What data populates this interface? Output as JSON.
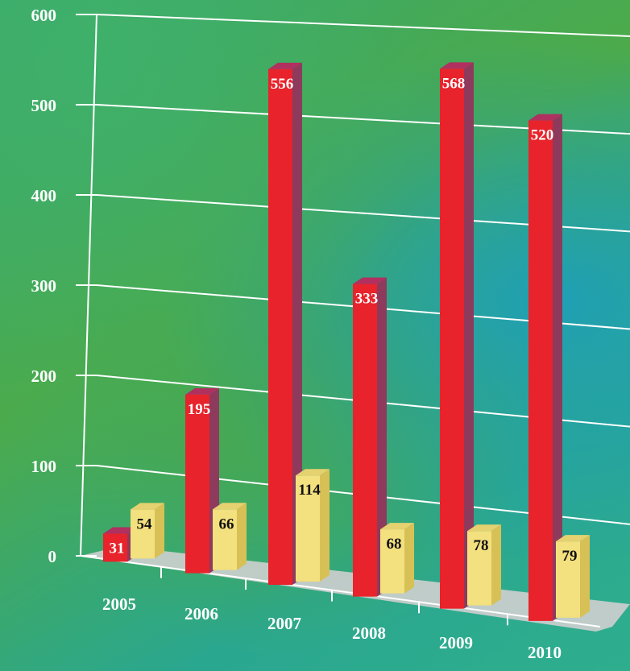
{
  "chart_data": {
    "type": "bar",
    "categories": [
      "2005",
      "2006",
      "2007",
      "2008",
      "2009",
      "2010"
    ],
    "series": [
      {
        "values": [
          31,
          195,
          556,
          333,
          568,
          520
        ],
        "color": "#e8232b"
      },
      {
        "values": [
          54,
          66,
          114,
          68,
          78,
          79
        ],
        "color": "#f3e07e"
      }
    ],
    "y_ticks": [
      "0",
      "100",
      "200",
      "300",
      "400",
      "500",
      "600"
    ],
    "ylim": [
      0,
      600
    ],
    "grid": true,
    "legend": "none",
    "three_d": true,
    "colors": {
      "red_front": "#e8232b",
      "red_side": "#8e3a5c",
      "red_top": "#b03060",
      "yellow_front": "#f3e07e",
      "yellow_side": "#d7c156",
      "yellow_top": "#e5d170",
      "floor": "#cfcfcf",
      "gridline": "#ffffff"
    }
  }
}
